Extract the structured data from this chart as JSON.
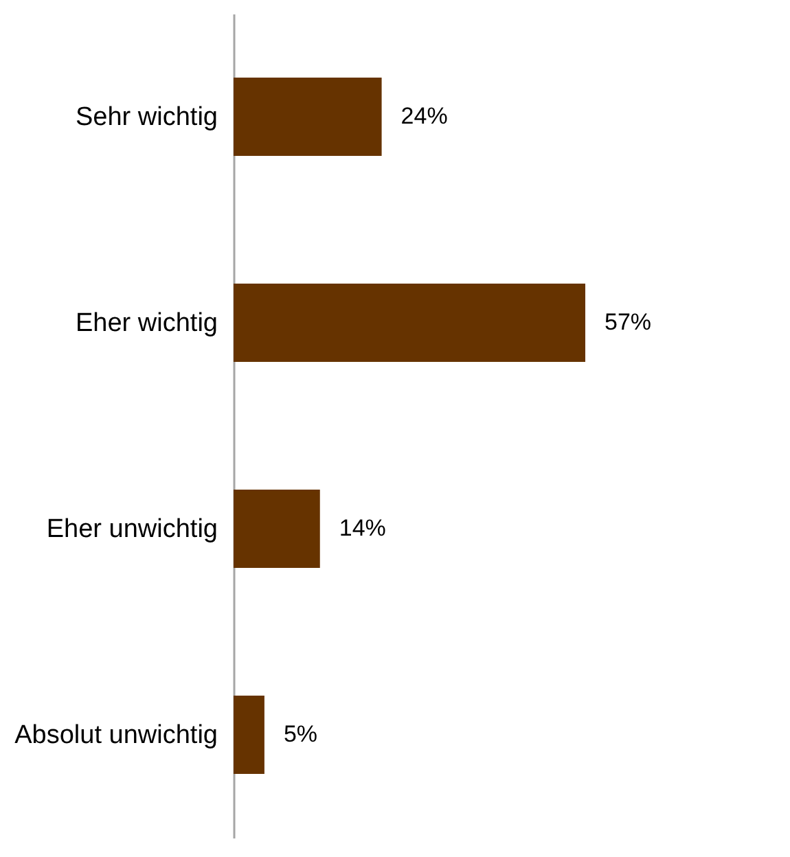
{
  "chart_data": {
    "type": "bar",
    "orientation": "horizontal",
    "categories": [
      "Sehr wichtig",
      "Eher wichtig",
      "Eher unwichtig",
      "Absolut unwichtig"
    ],
    "values": [
      24,
      57,
      14,
      5
    ],
    "color": "#663300",
    "data_labels": true,
    "value_labels": [
      "24%",
      "57%",
      "14%",
      "5%"
    ]
  }
}
